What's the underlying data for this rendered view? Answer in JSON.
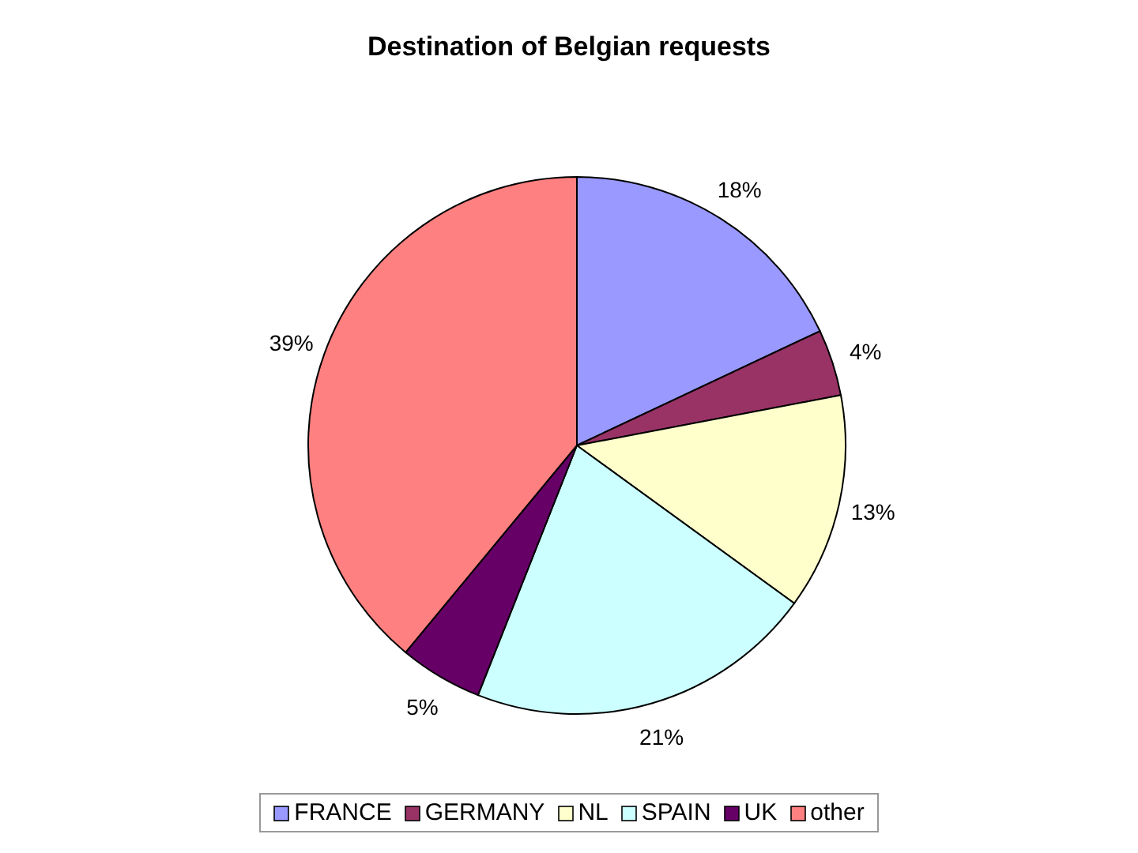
{
  "chart_data": {
    "type": "pie",
    "title": "Destination of Belgian requests",
    "categories": [
      "FRANCE",
      "GERMANY",
      "NL",
      "SPAIN",
      "UK",
      "other"
    ],
    "values": [
      18,
      4,
      13,
      21,
      5,
      39
    ],
    "colors": [
      "#9999ff",
      "#993366",
      "#ffffcc",
      "#ccffff",
      "#660066",
      "#ff8080"
    ],
    "value_labels": [
      "18%",
      "4%",
      "13%",
      "21%",
      "5%",
      "39%"
    ],
    "legend": "bottom"
  }
}
